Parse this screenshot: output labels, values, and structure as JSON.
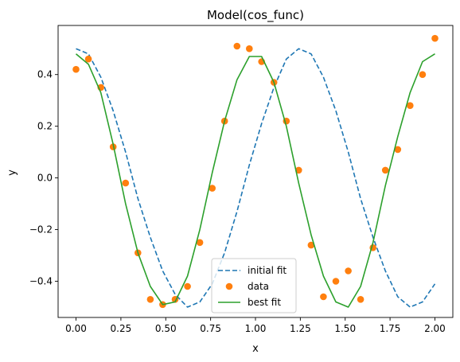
{
  "chart_data": {
    "type": "line",
    "title": "Model(cos_func)",
    "xlabel": "x",
    "ylabel": "y",
    "xlim": [
      -0.1,
      2.1
    ],
    "ylim": [
      -0.54,
      0.59
    ],
    "xticks": [
      0.0,
      0.25,
      0.5,
      0.75,
      1.0,
      1.25,
      1.5,
      1.75,
      2.0
    ],
    "xtick_labels": [
      "0.00",
      "0.25",
      "0.50",
      "0.75",
      "1.00",
      "1.25",
      "1.50",
      "1.75",
      "2.00"
    ],
    "yticks": [
      -0.4,
      -0.2,
      0.0,
      0.2,
      0.4
    ],
    "ytick_labels": [
      "−0.4",
      "−0.2",
      "0.0",
      "0.2",
      "0.4"
    ],
    "grid": false,
    "legend_position": "bottom-center",
    "series": [
      {
        "name": "initial fit",
        "kind": "line",
        "style": "dashed",
        "color": "#1f77b4",
        "x": [
          0.0,
          0.069,
          0.138,
          0.207,
          0.276,
          0.345,
          0.414,
          0.483,
          0.552,
          0.621,
          0.69,
          0.759,
          0.828,
          0.897,
          0.966,
          1.034,
          1.103,
          1.172,
          1.241,
          1.31,
          1.379,
          1.448,
          1.517,
          1.586,
          1.655,
          1.724,
          1.793,
          1.862,
          1.931,
          2.0
        ],
        "y": [
          0.5,
          0.48,
          0.39,
          0.26,
          0.1,
          -0.08,
          -0.23,
          -0.36,
          -0.45,
          -0.5,
          -0.48,
          -0.41,
          -0.29,
          -0.13,
          0.05,
          0.21,
          0.35,
          0.46,
          0.5,
          0.48,
          0.39,
          0.26,
          0.1,
          -0.08,
          -0.23,
          -0.36,
          -0.46,
          -0.5,
          -0.48,
          -0.41
        ]
      },
      {
        "name": "data",
        "kind": "scatter",
        "color": "#ff7f0e",
        "x": [
          0.0,
          0.069,
          0.138,
          0.207,
          0.276,
          0.345,
          0.414,
          0.483,
          0.552,
          0.621,
          0.69,
          0.759,
          0.828,
          0.897,
          0.966,
          1.034,
          1.103,
          1.172,
          1.241,
          1.31,
          1.379,
          1.448,
          1.517,
          1.586,
          1.655,
          1.724,
          1.793,
          1.862,
          1.931,
          2.0
        ],
        "y": [
          0.42,
          0.46,
          0.35,
          0.12,
          -0.02,
          -0.29,
          -0.47,
          -0.49,
          -0.47,
          -0.42,
          -0.25,
          -0.04,
          0.22,
          0.51,
          0.5,
          0.45,
          0.37,
          0.22,
          0.03,
          -0.26,
          -0.46,
          -0.4,
          -0.36,
          -0.47,
          -0.27,
          0.03,
          0.11,
          0.28,
          0.4,
          0.54
        ]
      },
      {
        "name": "best fit",
        "kind": "line",
        "style": "solid",
        "color": "#2ca02c",
        "x": [
          0.0,
          0.069,
          0.138,
          0.207,
          0.276,
          0.345,
          0.414,
          0.483,
          0.552,
          0.621,
          0.69,
          0.759,
          0.828,
          0.897,
          0.966,
          1.034,
          1.103,
          1.172,
          1.241,
          1.31,
          1.379,
          1.448,
          1.517,
          1.586,
          1.655,
          1.724,
          1.793,
          1.862,
          1.931,
          2.0
        ],
        "y": [
          0.48,
          0.44,
          0.33,
          0.13,
          -0.1,
          -0.29,
          -0.42,
          -0.49,
          -0.48,
          -0.38,
          -0.2,
          0.02,
          0.22,
          0.38,
          0.47,
          0.47,
          0.37,
          0.2,
          -0.02,
          -0.22,
          -0.38,
          -0.48,
          -0.5,
          -0.42,
          -0.25,
          -0.03,
          0.16,
          0.33,
          0.45,
          0.48
        ]
      }
    ]
  }
}
